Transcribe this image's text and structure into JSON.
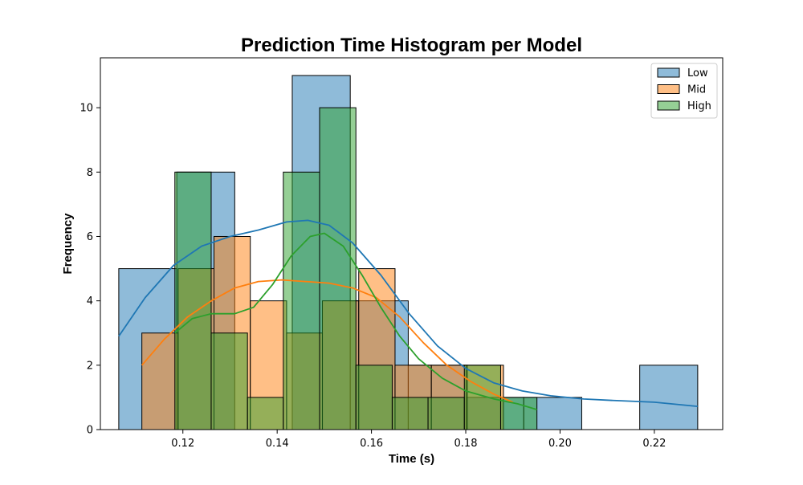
{
  "chart_data": {
    "type": "histogram",
    "title": "Prediction Time Histogram per Model",
    "xlabel": "Time (s)",
    "ylabel": "Frequency",
    "xlim": [
      0.1025,
      0.2345
    ],
    "ylim": [
      0,
      11.55
    ],
    "xticks": [
      0.12,
      0.14,
      0.16,
      0.18,
      0.2,
      0.22
    ],
    "xtick_labels": [
      "0.12",
      "0.14",
      "0.16",
      "0.18",
      "0.20",
      "0.22"
    ],
    "yticks": [
      0,
      2,
      4,
      6,
      8,
      10
    ],
    "ytick_labels": [
      "0",
      "2",
      "4",
      "6",
      "8",
      "10"
    ],
    "grid": false,
    "legend_position": "top-right",
    "series": [
      {
        "name": "Low",
        "color": "#1f77b4",
        "bin_edges": [
          0.1064,
          0.1187,
          0.131,
          0.1432,
          0.1555,
          0.1678,
          0.1801,
          0.1923,
          0.2046,
          0.2169,
          0.2292
        ],
        "counts": [
          5,
          8,
          0,
          11,
          4,
          2,
          1,
          1,
          0,
          2
        ],
        "kde": [
          [
            0.1064,
            2.9
          ],
          [
            0.112,
            4.1
          ],
          [
            0.118,
            5.1
          ],
          [
            0.124,
            5.7
          ],
          [
            0.13,
            6.0
          ],
          [
            0.136,
            6.2
          ],
          [
            0.142,
            6.45
          ],
          [
            0.1465,
            6.5
          ],
          [
            0.151,
            6.35
          ],
          [
            0.156,
            5.8
          ],
          [
            0.162,
            4.8
          ],
          [
            0.168,
            3.6
          ],
          [
            0.174,
            2.6
          ],
          [
            0.18,
            1.9
          ],
          [
            0.186,
            1.45
          ],
          [
            0.192,
            1.2
          ],
          [
            0.198,
            1.05
          ],
          [
            0.205,
            0.95
          ],
          [
            0.212,
            0.9
          ],
          [
            0.22,
            0.85
          ],
          [
            0.2292,
            0.72
          ]
        ]
      },
      {
        "name": "Mid",
        "color": "#ff7f0e",
        "bin_edges": [
          0.1113,
          0.119,
          0.1266,
          0.1343,
          0.142,
          0.1496,
          0.1573,
          0.165,
          0.1727,
          0.1803,
          0.188
        ],
        "counts": [
          3,
          5,
          6,
          4,
          3,
          4,
          5,
          2,
          2,
          2
        ],
        "kde": [
          [
            0.1113,
            2.0
          ],
          [
            0.116,
            2.8
          ],
          [
            0.121,
            3.5
          ],
          [
            0.126,
            4.0
          ],
          [
            0.131,
            4.4
          ],
          [
            0.136,
            4.6
          ],
          [
            0.141,
            4.65
          ],
          [
            0.146,
            4.6
          ],
          [
            0.151,
            4.55
          ],
          [
            0.156,
            4.4
          ],
          [
            0.161,
            4.1
          ],
          [
            0.166,
            3.5
          ],
          [
            0.171,
            2.7
          ],
          [
            0.176,
            2.0
          ],
          [
            0.181,
            1.5
          ],
          [
            0.186,
            1.1
          ],
          [
            0.19,
            0.85
          ]
        ]
      },
      {
        "name": "High",
        "color": "#2ca02c",
        "bin_edges": [
          0.1183,
          0.126,
          0.1337,
          0.1413,
          0.149,
          0.1567,
          0.1644,
          0.172,
          0.1797,
          0.1874,
          0.1951
        ],
        "counts": [
          8,
          3,
          1,
          8,
          10,
          2,
          1,
          1,
          2,
          1
        ],
        "kde": [
          [
            0.1183,
            3.0
          ],
          [
            0.122,
            3.45
          ],
          [
            0.126,
            3.6
          ],
          [
            0.131,
            3.6
          ],
          [
            0.135,
            3.8
          ],
          [
            0.139,
            4.5
          ],
          [
            0.143,
            5.4
          ],
          [
            0.147,
            6.0
          ],
          [
            0.15,
            6.1
          ],
          [
            0.154,
            5.7
          ],
          [
            0.158,
            4.8
          ],
          [
            0.162,
            3.8
          ],
          [
            0.166,
            2.9
          ],
          [
            0.17,
            2.2
          ],
          [
            0.175,
            1.6
          ],
          [
            0.18,
            1.2
          ],
          [
            0.186,
            0.95
          ],
          [
            0.191,
            0.8
          ],
          [
            0.1951,
            0.62
          ]
        ]
      }
    ]
  }
}
